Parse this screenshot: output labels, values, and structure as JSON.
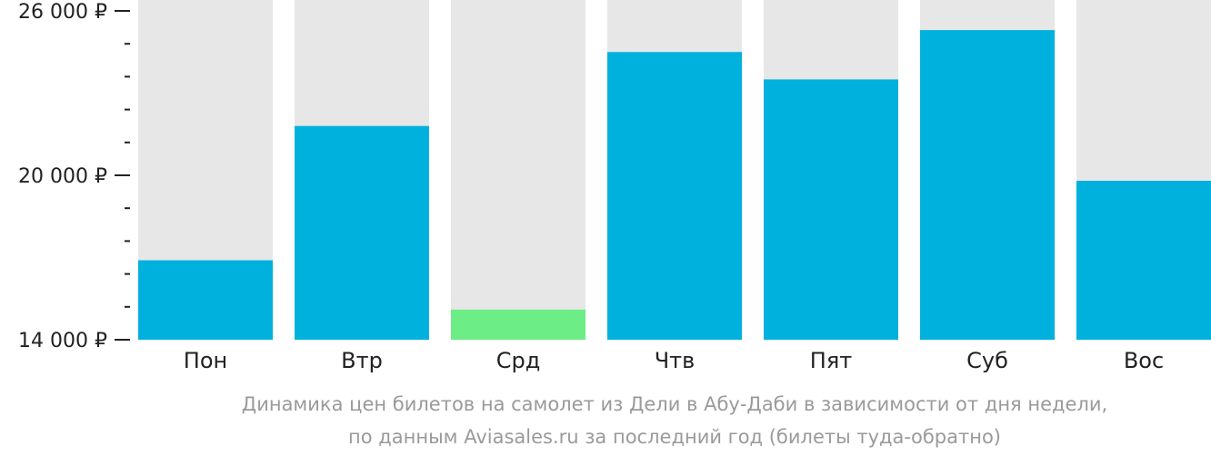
{
  "chart_data": {
    "type": "bar",
    "categories": [
      "Пон",
      "Втр",
      "Срд",
      "Чтв",
      "Пят",
      "Суб",
      "Вос"
    ],
    "values": [
      16900,
      21800,
      15100,
      24500,
      23500,
      25300,
      19800
    ],
    "ylim": [
      14000,
      26000
    ],
    "yticks": [
      {
        "value": 26000,
        "label": "26 000 ₽"
      },
      {
        "value": 20000,
        "label": "20 000 ₽"
      },
      {
        "value": 14000,
        "label": "14 000 ₽"
      }
    ],
    "minor_tick_step": 1200,
    "highlight_index": 2,
    "colors": {
      "bar": "#00b1dd",
      "highlight": "#6ced85",
      "bar_background": "#e7e7e7",
      "axis": "#222222"
    },
    "caption": [
      "Динамика цен билетов на самолет из Дели в Абу-Даби в зависимости от дня недели,",
      "по данным Aviasales.ru за последний год (билеты туда-обратно)"
    ]
  }
}
